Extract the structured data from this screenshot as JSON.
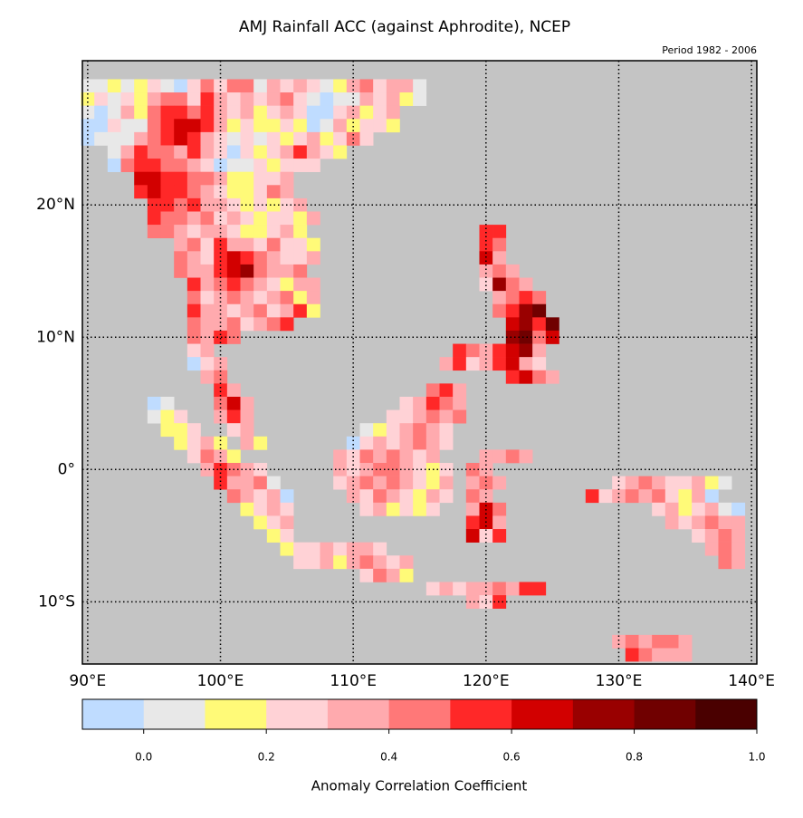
{
  "chart_data": {
    "type": "gridmap",
    "title": "AMJ Rainfall ACC (against Aphrodite), NCEP",
    "subtitle": "Period 1982 - 2006",
    "xlim": [
      89.6,
      140.4
    ],
    "ylim": [
      -14.7,
      30.9
    ],
    "xticks": [
      {
        "value": 90,
        "label": "90°E"
      },
      {
        "value": 100,
        "label": "100°E"
      },
      {
        "value": 110,
        "label": "110°E"
      },
      {
        "value": 120,
        "label": "120°E"
      },
      {
        "value": 130,
        "label": "130°E"
      },
      {
        "value": 140,
        "label": "140°E"
      }
    ],
    "yticks": [
      {
        "value": 20,
        "label": "20°N"
      },
      {
        "value": 10,
        "label": "10°N"
      },
      {
        "value": 0,
        "label": "0°"
      },
      {
        "value": -10,
        "label": "10°S"
      }
    ],
    "grid": true,
    "background": "#c4c4c4",
    "colorbar": {
      "label": "Anomaly Correlation Coefficient",
      "lim": [
        -0.1,
        1.0
      ],
      "colors": [
        "#bfdcff",
        "#e8e8e8",
        "#fffa78",
        "#ffd2d6",
        "#ffaaae",
        "#ff7878",
        "#ff2828",
        "#d20000",
        "#990000",
        "#700000",
        "#4a0000"
      ],
      "ticks": [
        {
          "value": 0,
          "label": "0.0"
        },
        {
          "value": 0.2,
          "label": "0.2"
        },
        {
          "value": 0.4,
          "label": "0.4"
        },
        {
          "value": 0.6,
          "label": "0.6"
        },
        {
          "value": 0.8,
          "label": "0.8"
        },
        {
          "value": 1.0,
          "label": "1.0"
        }
      ]
    },
    "rows": [
      {
        "lat": 29,
        "lon0": 90,
        "values": [
          0.05,
          0.05,
          0.15,
          0.05,
          0.15,
          0.25,
          0.05,
          -0.05,
          0.25,
          0.45,
          0.25,
          0.45,
          0.45,
          0.05,
          0.35,
          0.25,
          0.35,
          0.25,
          0.05,
          0.15,
          0.35,
          0.45,
          0.25,
          0.35,
          0.35,
          0.05
        ]
      },
      {
        "lat": 28,
        "lon0": 90,
        "values": [
          0.15,
          0.25,
          0.05,
          0.25,
          0.15,
          0.35,
          0.45,
          0.45,
          0.25,
          0.55,
          0.35,
          0.25,
          0.35,
          0.25,
          0.35,
          0.45,
          0.25,
          0.05,
          -0.05,
          0.05,
          0.05,
          0.35,
          0.25,
          0.35,
          0.15,
          0.05
        ]
      },
      {
        "lat": 27,
        "lon0": 90,
        "values": [
          0.05,
          -0.05,
          0.05,
          0.35,
          0.15,
          0.45,
          0.55,
          0.55,
          0.45,
          0.55,
          0.35,
          0.25,
          0.35,
          0.15,
          0.25,
          0.35,
          0.25,
          -0.05,
          -0.05,
          0.25,
          0.35,
          0.15,
          0.25,
          0.35
        ]
      },
      {
        "lat": 26,
        "lon0": 90,
        "values": [
          -0.05,
          -0.05,
          0.25,
          0.05,
          0.05,
          0.45,
          0.55,
          0.65,
          0.65,
          0.55,
          0.35,
          0.15,
          0.25,
          0.15,
          0.15,
          0.25,
          0.15,
          -0.05,
          0.05,
          0.35,
          0.15,
          0.25,
          0.25,
          0.15
        ]
      },
      {
        "lat": 25,
        "lon0": 90,
        "values": [
          -0.05,
          0.05,
          0.05,
          0.05,
          0.35,
          0.45,
          0.55,
          0.65,
          0.55,
          0.35,
          0.25,
          0.05,
          0.25,
          0.05,
          0.25,
          0.15,
          0.25,
          0.35,
          0.15,
          0.25,
          0.45,
          0.25
        ]
      },
      {
        "lat": 24,
        "lon0": 92,
        "values": [
          0.05,
          0.35,
          0.55,
          0.45,
          0.45,
          0.35,
          0.55,
          0.35,
          0.25,
          -0.05,
          0.25,
          0.15,
          0.25,
          0.35,
          0.55,
          0.35,
          0.25,
          0.15
        ]
      },
      {
        "lat": 23,
        "lon0": 92,
        "values": [
          -0.05,
          0.45,
          0.55,
          0.55,
          0.45,
          0.45,
          0.35,
          0.25,
          -0.05,
          0.05,
          0.05,
          0.25,
          0.15,
          0.25,
          0.25,
          0.25
        ]
      },
      {
        "lat": 22,
        "lon0": 94,
        "values": [
          0.65,
          0.65,
          0.55,
          0.55,
          0.45,
          0.45,
          0.35,
          0.15,
          0.15,
          0.25,
          0.25,
          0.35
        ]
      },
      {
        "lat": 21,
        "lon0": 94,
        "values": [
          0.55,
          0.65,
          0.55,
          0.55,
          0.45,
          0.35,
          0.25,
          0.15,
          0.15,
          0.25,
          0.45,
          0.35
        ]
      },
      {
        "lat": 20,
        "lon0": 95,
        "values": [
          0.55,
          0.55,
          0.45,
          0.55,
          0.35,
          0.35,
          0.25,
          0.15,
          0.25,
          0.15,
          0.25,
          0.35
        ]
      },
      {
        "lat": 19,
        "lon0": 95,
        "values": [
          0.55,
          0.45,
          0.45,
          0.35,
          0.45,
          0.25,
          0.35,
          0.25,
          0.15,
          0.25,
          0.25,
          0.15,
          0.35
        ]
      },
      {
        "lat": 18,
        "lon0": 95,
        "values": [
          0.45,
          0.45,
          0.35,
          0.25,
          0.35,
          0.35,
          0.25,
          0.15,
          0.15,
          0.25,
          0.35,
          0.15
        ]
      },
      {
        "lat": 17,
        "lon0": 97,
        "values": [
          0.35,
          0.45,
          0.25,
          0.55,
          0.35,
          0.35,
          0.25,
          0.45,
          0.25,
          0.25,
          0.15
        ]
      },
      {
        "lat": 16,
        "lon0": 97,
        "values": [
          0.45,
          0.35,
          0.25,
          0.55,
          0.65,
          0.55,
          0.45,
          0.35,
          0.25,
          0.25,
          0.35
        ]
      },
      {
        "lat": 15,
        "lon0": 97,
        "values": [
          0.45,
          0.35,
          0.35,
          0.55,
          0.65,
          0.75,
          0.45,
          0.35,
          0.35,
          0.45
        ]
      },
      {
        "lat": 14,
        "lon0": 98,
        "values": [
          0.55,
          0.35,
          0.45,
          0.55,
          0.45,
          0.35,
          0.25,
          0.15,
          0.35,
          0.35
        ]
      },
      {
        "lat": 13,
        "lon0": 98,
        "values": [
          0.45,
          0.25,
          0.35,
          0.45,
          0.35,
          0.25,
          0.35,
          0.45,
          0.15,
          0.35
        ]
      },
      {
        "lat": 12,
        "lon0": 98,
        "values": [
          0.55,
          0.35,
          0.35,
          0.25,
          0.35,
          0.45,
          0.25,
          0.35,
          0.55,
          0.15
        ]
      },
      {
        "lat": 11,
        "lon0": 98,
        "values": [
          0.45,
          0.35,
          0.35,
          0.45,
          0.25,
          0.35,
          0.45,
          0.55
        ]
      },
      {
        "lat": 10,
        "lon0": 98,
        "values": [
          0.45,
          0.35,
          0.55,
          0.45
        ]
      },
      {
        "lat": 9,
        "lon0": 98,
        "values": [
          0.25,
          0.35
        ]
      },
      {
        "lat": 8,
        "lon0": 98,
        "values": [
          -0.05,
          0.25,
          0.35
        ]
      },
      {
        "lat": 7,
        "lon0": 99,
        "values": [
          0.35,
          0.45
        ]
      },
      {
        "lat": 6,
        "lon0": 100,
        "values": [
          0.55,
          0.35
        ]
      },
      {
        "lat": 5,
        "lon0": 100,
        "values": [
          0.45,
          0.65,
          0.35
        ]
      },
      {
        "lat": 4,
        "lon0": 100,
        "values": [
          0.35,
          0.55,
          0.35
        ]
      },
      {
        "lat": 3,
        "lon0": 101,
        "values": [
          0.25,
          0.35
        ]
      },
      {
        "lat": 2,
        "lon0": 102,
        "values": [
          0.35,
          0.15
        ]
      },
      {
        "lat": 18,
        "lon0": 120,
        "values": [
          0.55,
          0.55
        ]
      },
      {
        "lat": 17,
        "lon0": 120,
        "values": [
          0.55,
          0.45
        ]
      },
      {
        "lat": 16,
        "lon0": 120,
        "values": [
          0.65,
          0.35
        ]
      },
      {
        "lat": 15,
        "lon0": 120,
        "values": [
          0.35,
          0.45,
          0.35
        ]
      },
      {
        "lat": 14,
        "lon0": 120,
        "values": [
          0.25,
          0.75,
          0.45,
          0.35
        ]
      },
      {
        "lat": 13,
        "lon0": 121,
        "values": [
          0.35,
          0.45,
          0.55,
          0.45
        ]
      },
      {
        "lat": 12,
        "lon0": 121,
        "values": [
          0.45,
          0.55,
          0.75,
          0.85
        ]
      },
      {
        "lat": 11,
        "lon0": 122,
        "values": [
          0.65,
          0.75,
          0.55,
          0.85
        ]
      },
      {
        "lat": 10,
        "lon0": 122,
        "values": [
          0.75,
          0.85,
          0.45,
          0.65
        ]
      },
      {
        "lat": 9,
        "lon0": 118,
        "values": [
          0.55,
          0.45,
          0.35,
          0.55,
          0.65,
          0.75,
          0.35
        ]
      },
      {
        "lat": 8,
        "lon0": 117,
        "values": [
          0.35,
          0.55,
          0.25,
          0.35,
          0.55,
          0.65,
          0.35,
          0.25
        ]
      },
      {
        "lat": 7,
        "lon0": 122,
        "values": [
          0.55,
          0.65,
          0.45,
          0.35
        ]
      },
      {
        "lat": 5,
        "lon0": 95,
        "values": [
          -0.05,
          0.05
        ]
      },
      {
        "lat": 4,
        "lon0": 95,
        "values": [
          0.05,
          0.15,
          0.25
        ]
      },
      {
        "lat": 3,
        "lon0": 96,
        "values": [
          0.15,
          0.15,
          0.25
        ]
      },
      {
        "lat": 2,
        "lon0": 97,
        "values": [
          0.15,
          0.25,
          0.35,
          0.15
        ]
      },
      {
        "lat": 1,
        "lon0": 98,
        "values": [
          0.25,
          0.45,
          0.35,
          0.15
        ]
      },
      {
        "lat": 0,
        "lon0": 99,
        "values": [
          0.35,
          0.55,
          0.45,
          0.35,
          0.25
        ]
      },
      {
        "lat": -1,
        "lon0": 100,
        "values": [
          0.55,
          0.35,
          0.35,
          0.45,
          0.05
        ]
      },
      {
        "lat": -2,
        "lon0": 101,
        "values": [
          0.45,
          0.35,
          0.25,
          0.35,
          -0.05
        ]
      },
      {
        "lat": -3,
        "lon0": 102,
        "values": [
          0.15,
          0.25,
          0.35,
          0.25
        ]
      },
      {
        "lat": -4,
        "lon0": 103,
        "values": [
          0.15,
          0.25,
          0.35
        ]
      },
      {
        "lat": -5,
        "lon0": 104,
        "values": [
          0.15,
          0.25
        ]
      },
      {
        "lat": 6,
        "lon0": 116,
        "values": [
          0.45,
          0.55,
          0.35
        ]
      },
      {
        "lat": 5,
        "lon0": 114,
        "values": [
          0.25,
          0.35,
          0.55,
          0.45,
          0.35
        ]
      },
      {
        "lat": 4,
        "lon0": 113,
        "values": [
          0.25,
          0.25,
          0.35,
          0.45,
          0.35,
          0.45
        ]
      },
      {
        "lat": 3,
        "lon0": 111,
        "values": [
          0.05,
          0.15,
          0.25,
          0.35,
          0.45,
          0.35,
          0.25
        ]
      },
      {
        "lat": 2,
        "lon0": 110,
        "values": [
          -0.05,
          0.25,
          0.35,
          0.25,
          0.35,
          0.45,
          0.35,
          0.25
        ]
      },
      {
        "lat": 1,
        "lon0": 109,
        "values": [
          0.35,
          0.25,
          0.45,
          0.35,
          0.45,
          0.35,
          0.25,
          0.35
        ]
      },
      {
        "lat": 0,
        "lon0": 109,
        "values": [
          0.35,
          0.25,
          0.35,
          0.45,
          0.45,
          0.35,
          0.25,
          0.15,
          0.25
        ]
      },
      {
        "lat": -1,
        "lon0": 109,
        "values": [
          0.25,
          0.35,
          0.45,
          0.35,
          0.45,
          0.35,
          0.25,
          0.15,
          0.35
        ]
      },
      {
        "lat": -2,
        "lon0": 110,
        "values": [
          0.35,
          0.25,
          0.45,
          0.35,
          0.25,
          0.15,
          0.35,
          0.25
        ]
      },
      {
        "lat": -3,
        "lon0": 111,
        "values": [
          0.25,
          0.35,
          0.15,
          0.25,
          0.15,
          0.25
        ]
      },
      {
        "lat": 1,
        "lon0": 120,
        "values": [
          0.35,
          0.35,
          0.45,
          0.35
        ]
      },
      {
        "lat": 0,
        "lon0": 119,
        "values": [
          0.45,
          0.35
        ]
      },
      {
        "lat": -1,
        "lon0": 119,
        "values": [
          0.35,
          0.45,
          0.35
        ]
      },
      {
        "lat": -2,
        "lon0": 119,
        "values": [
          0.45,
          0.35
        ]
      },
      {
        "lat": -3,
        "lon0": 119,
        "values": [
          0.35,
          0.65,
          0.45
        ]
      },
      {
        "lat": -4,
        "lon0": 119,
        "values": [
          0.55,
          0.65,
          0.35
        ]
      },
      {
        "lat": -5,
        "lon0": 119,
        "values": [
          0.65,
          0.25,
          0.55
        ]
      },
      {
        "lat": -6,
        "lon0": 105,
        "values": [
          0.15,
          0.25,
          0.25,
          0.35,
          0.25,
          0.35,
          0.35,
          0.25
        ]
      },
      {
        "lat": -7,
        "lon0": 106,
        "values": [
          0.25,
          0.25,
          0.35,
          0.15,
          0.35,
          0.45,
          0.35,
          0.25,
          0.35
        ]
      },
      {
        "lat": -8,
        "lon0": 111,
        "values": [
          0.25,
          0.45,
          0.35,
          0.15
        ]
      },
      {
        "lat": -9,
        "lon0": 116,
        "values": [
          0.25,
          0.35,
          0.25,
          0.35,
          0.35,
          0.45,
          0.35,
          0.55,
          0.55
        ]
      },
      {
        "lat": -10,
        "lon0": 119,
        "values": [
          0.35,
          0.25,
          0.55
        ]
      },
      {
        "lat": -1,
        "lon0": 130,
        "values": [
          0.25,
          0.35,
          0.45,
          0.35,
          0.25,
          0.25,
          0.35,
          0.15,
          0.05
        ]
      },
      {
        "lat": -2,
        "lon0": 128,
        "values": [
          0.55,
          0.25,
          0.35,
          0.45,
          0.35,
          0.45,
          0.25,
          0.15,
          0.35,
          -0.05
        ]
      },
      {
        "lat": -3,
        "lon0": 133,
        "values": [
          0.25,
          0.35,
          0.15,
          0.25,
          0.35,
          0.05,
          -0.05
        ]
      },
      {
        "lat": -4,
        "lon0": 134,
        "values": [
          0.35,
          0.25,
          0.35,
          0.45,
          0.35,
          0.35
        ]
      },
      {
        "lat": -5,
        "lon0": 136,
        "values": [
          0.25,
          0.35,
          0.45,
          0.35
        ]
      },
      {
        "lat": -6,
        "lon0": 137,
        "values": [
          0.35,
          0.45,
          0.35
        ]
      },
      {
        "lat": -7,
        "lon0": 138,
        "values": [
          0.45,
          0.35
        ]
      },
      {
        "lat": -13,
        "lon0": 130,
        "values": [
          0.35,
          0.45,
          0.35,
          0.45,
          0.45,
          0.35
        ]
      },
      {
        "lat": -14,
        "lon0": 131,
        "values": [
          0.55,
          0.45,
          0.35,
          0.35,
          0.35
        ]
      }
    ]
  }
}
